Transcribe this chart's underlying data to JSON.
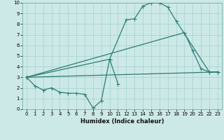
{
  "bg_color": "#cce9e7",
  "grid_color": "#aad4d1",
  "line_color": "#2d7d74",
  "xlabel": "Humidex (Indice chaleur)",
  "xlim": [
    -0.5,
    23.5
  ],
  "ylim": [
    0,
    10
  ],
  "xticks": [
    0,
    1,
    2,
    3,
    4,
    5,
    6,
    7,
    8,
    9,
    10,
    11,
    12,
    13,
    14,
    15,
    16,
    17,
    18,
    19,
    20,
    21,
    22,
    23
  ],
  "yticks": [
    0,
    1,
    2,
    3,
    4,
    5,
    6,
    7,
    8,
    9,
    10
  ],
  "line_series": [
    {
      "x": [
        0,
        1,
        2,
        3,
        4,
        5,
        6,
        7,
        8,
        9,
        10,
        11
      ],
      "y": [
        3.0,
        2.2,
        1.8,
        2.0,
        1.6,
        1.5,
        1.5,
        1.4,
        0.1,
        0.8,
        4.7,
        2.4
      ]
    },
    {
      "x": [
        0,
        10,
        12,
        13,
        14,
        15,
        16,
        17,
        18,
        22,
        23
      ],
      "y": [
        3.0,
        4.7,
        8.4,
        8.5,
        9.7,
        10.0,
        10.0,
        9.6,
        8.3,
        3.5,
        3.5
      ]
    },
    {
      "x": [
        0,
        19,
        20,
        21,
        22,
        23
      ],
      "y": [
        3.0,
        7.2,
        5.5,
        3.8,
        3.5,
        3.5
      ]
    },
    {
      "x": [
        0,
        23
      ],
      "y": [
        3.0,
        3.5
      ]
    }
  ]
}
